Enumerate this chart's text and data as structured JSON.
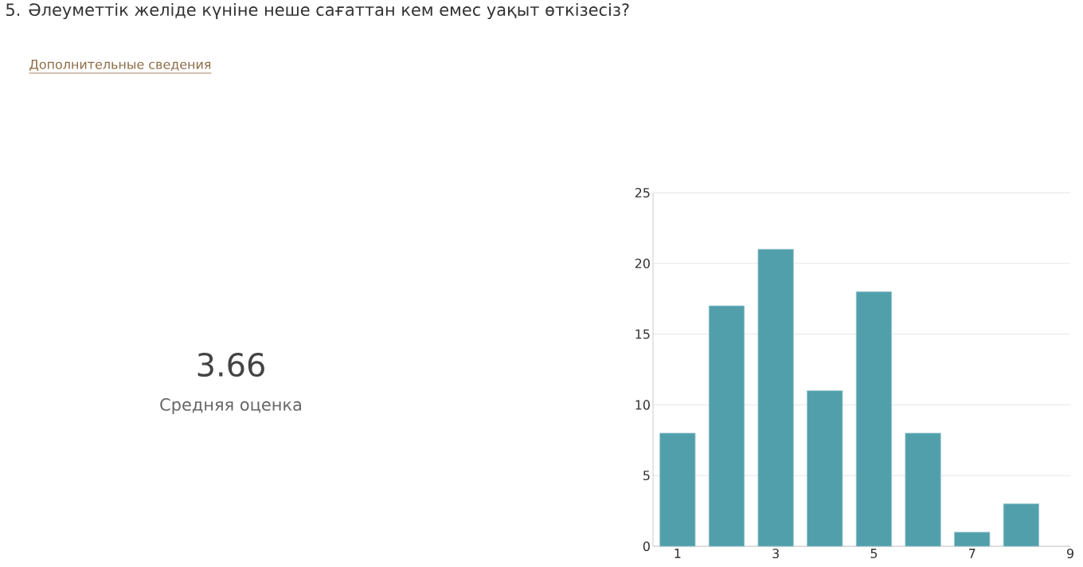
{
  "chart_data": {
    "type": "bar",
    "title": "5.  Әлеуметтік желіде күніне неше сағаттан кем емес уақыт өткізесіз?",
    "annotations": [
      "Дополнительные сведения",
      "3.66",
      "Средняя оценка"
    ],
    "x": [
      1,
      2,
      3,
      4,
      5,
      6,
      7,
      8
    ],
    "values": [
      8,
      17,
      21,
      11,
      18,
      8,
      1,
      3
    ],
    "color": "#529fac",
    "xlim": [
      0.5,
      9
    ],
    "xticks": [
      1,
      3,
      5,
      7,
      9
    ],
    "ylim": [
      0,
      25
    ],
    "yticks": [
      0,
      5,
      10,
      15,
      20,
      25
    ],
    "grid": "y"
  }
}
